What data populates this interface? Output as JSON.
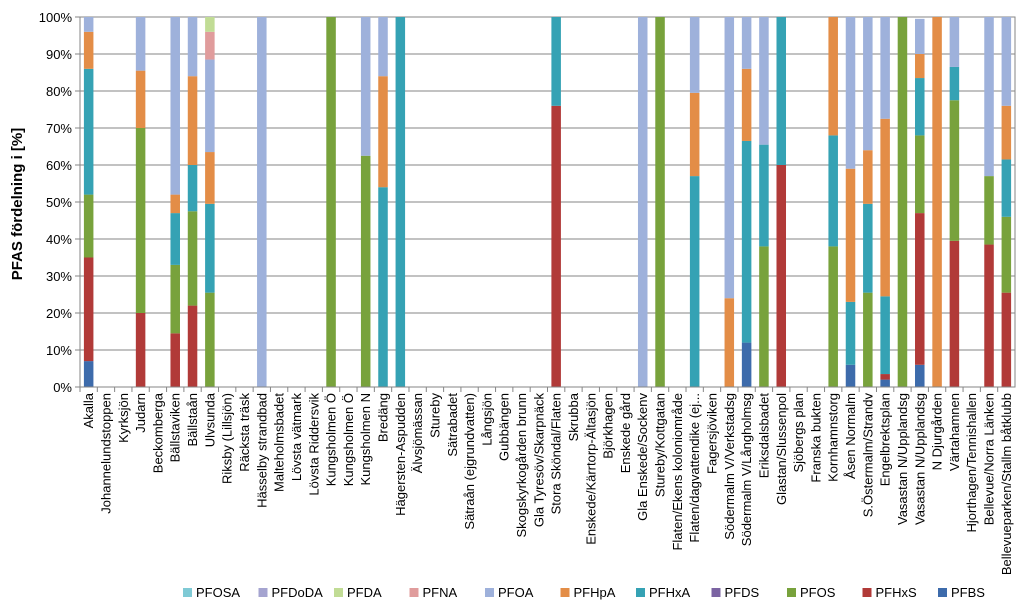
{
  "chart_data": {
    "type": "bar",
    "stacked": true,
    "ylabel": "PFAS fördelning i [%]",
    "ylim": [
      0,
      100
    ],
    "yticks": [
      "0%",
      "10%",
      "20%",
      "30%",
      "40%",
      "50%",
      "60%",
      "70%",
      "80%",
      "90%",
      "100%"
    ],
    "grid": true,
    "legend_position": "bottom",
    "series_order": [
      "PFBS",
      "PFHxS",
      "PFOS",
      "PFDS",
      "PFHxA",
      "PFHpA",
      "PFOA",
      "PFNA",
      "PFDA",
      "PFDoDA",
      "PFOSA"
    ],
    "legend_order": [
      "PFOSA",
      "PFDoDA",
      "PFDA",
      "PFNA",
      "PFOA",
      "PFHpA",
      "PFHxA",
      "PFDS",
      "PFOS",
      "PFHxS",
      "PFBS"
    ],
    "colors": {
      "PFOSA": "#7fcad5",
      "PFDoDA": "#a5a4d0",
      "PFDA": "#c1dc95",
      "PFNA": "#e09c9c",
      "PFOA": "#9eb1db",
      "PFHpA": "#e38d47",
      "PFHxA": "#35a2b4",
      "PFDS": "#7b63a2",
      "PFOS": "#78a23c",
      "PFHxS": "#b13a38",
      "PFBS": "#3d6bab"
    },
    "categories": [
      "Akalla",
      "Johannelundstoppen",
      "Kyrksjön",
      "Judarn",
      "Beckomberga",
      "Bällstaviken",
      "Bällstaån",
      "Ulvsunda",
      "Riksby (Lillsjön)",
      "Räcksta träsk",
      "Hässelby strandbad",
      "Malteholmsbadet",
      "Lövsta vätmark",
      "Lövsta Riddersvik",
      "Kungsholmen Ö",
      "Kungsholmen Ö",
      "Kungsholmen N",
      "Bredäng",
      "Hägersten-Aspudden",
      "Älvsjömässan",
      "Stureby",
      "Sätrabadet",
      "Sätraån (ejgrundvatten)",
      "Långsjön",
      "Gubbängen",
      "Skogskyrkogården brunn",
      "Gla Tyresöv/Skarpnäck",
      "Stora Sköndal/Flaten",
      "Skrubba",
      "Enskede/Kärrtorp-Ältasjön",
      "Björkhagen",
      "Enskede gård",
      "Gla Enskede/Sockenv",
      "Stureby/Kottgatan",
      "Flaten/Ekens koloniområde",
      "Flaten/dagvattendike (ej...",
      "Fagersjöviken",
      "Södermalm V/Verkstadsg",
      "Södermalm V/Långholmsg",
      "Eriksdalsbadet",
      "Glastan/Slussenpol",
      "Sjöbergs plan",
      "Franska bukten",
      "Kornhamnstorg",
      "Åsen Normalm",
      "S.Östermalm/Strandv",
      "Engelbrektsplan",
      "Vasastan N/Upplandsg",
      "Vasastan N/Upplandsg",
      "N Djurgården",
      "Värtahamnen",
      "Hjorthagen/Tennishallen",
      "Bellevue/Norra Länken",
      "Bellevueparken/Stallm båtklubb"
    ],
    "series": [
      {
        "name": "PFBS",
        "values": [
          7,
          0,
          0,
          0,
          0,
          0,
          0,
          0,
          0,
          0,
          0,
          0,
          0,
          0,
          0,
          0,
          0,
          0,
          0,
          0,
          0,
          0,
          0,
          0,
          0,
          0,
          0,
          0,
          0,
          0,
          0,
          0,
          0,
          0,
          0,
          0,
          0,
          0,
          12,
          0,
          0,
          0,
          0,
          0,
          6,
          0,
          2,
          0,
          6,
          0,
          0,
          0,
          0,
          0
        ]
      },
      {
        "name": "PFHxS",
        "values": [
          28,
          0,
          0,
          20,
          0,
          14.5,
          22,
          0,
          0,
          0,
          0,
          0,
          0,
          0,
          0,
          0,
          0,
          0,
          0,
          0,
          0,
          0,
          0,
          0,
          0,
          0,
          0,
          76,
          0,
          0,
          0,
          0,
          0,
          0,
          0,
          0,
          0,
          0,
          0,
          0,
          60,
          0,
          0,
          0,
          0,
          0,
          1.5,
          0,
          41,
          0,
          39.5,
          0,
          38.5,
          25.5
        ]
      },
      {
        "name": "PFOS",
        "values": [
          17,
          0,
          0,
          50,
          0,
          18.5,
          25.5,
          25.5,
          0,
          0,
          0,
          0,
          0,
          0,
          100,
          0,
          62.5,
          0,
          0,
          0,
          0,
          0,
          0,
          0,
          0,
          0,
          0,
          0,
          0,
          0,
          0,
          0,
          0,
          100,
          0,
          0,
          0,
          0,
          0,
          38,
          0,
          0,
          0,
          38,
          0,
          25.5,
          0,
          100,
          21,
          0,
          38,
          0,
          18.5,
          20.5
        ]
      },
      {
        "name": "PFDS",
        "values": [
          0,
          0,
          0,
          0,
          0,
          0,
          0,
          0,
          0,
          0,
          0,
          0,
          0,
          0,
          0,
          0,
          0,
          0,
          0,
          0,
          0,
          0,
          0,
          0,
          0,
          0,
          0,
          0,
          0,
          0,
          0,
          0,
          0,
          0,
          0,
          0,
          0,
          0,
          0,
          0,
          0,
          0,
          0,
          0,
          0,
          0,
          0,
          0,
          0,
          0,
          0,
          0,
          0,
          0
        ]
      },
      {
        "name": "PFHxA",
        "values": [
          34,
          0,
          0,
          0,
          0,
          14,
          12.5,
          24,
          0,
          0,
          0,
          0,
          0,
          0,
          0,
          0,
          0,
          54,
          100,
          0,
          0,
          0,
          0,
          0,
          0,
          0,
          0,
          24,
          0,
          0,
          0,
          0,
          0,
          0,
          0,
          57,
          0,
          0,
          54.5,
          27.5,
          40,
          0,
          0,
          30,
          17,
          24,
          21,
          0,
          15.5,
          0,
          9,
          0,
          0,
          15.5
        ]
      },
      {
        "name": "PFHpA",
        "values": [
          10,
          0,
          0,
          15.5,
          0,
          5,
          24,
          14,
          0,
          0,
          0,
          0,
          0,
          0,
          0,
          0,
          0,
          30,
          0,
          0,
          0,
          0,
          0,
          0,
          0,
          0,
          0,
          0,
          0,
          0,
          0,
          0,
          0,
          0,
          0,
          22.5,
          0,
          24,
          19.5,
          0,
          0,
          0,
          0,
          32,
          36,
          14.5,
          48,
          0,
          6.5,
          100,
          0,
          0,
          0,
          14.5
        ]
      },
      {
        "name": "PFOA",
        "values": [
          4,
          0,
          0,
          14.5,
          0,
          48,
          16,
          25,
          0,
          0,
          100,
          0,
          0,
          0,
          0,
          0,
          37.5,
          16,
          0,
          0,
          0,
          0,
          0,
          0,
          0,
          0,
          0,
          0,
          0,
          0,
          0,
          0,
          100,
          0,
          0,
          20.5,
          0,
          76,
          14,
          34.5,
          0,
          0,
          0,
          0,
          41,
          36,
          27.5,
          0,
          9.5,
          0,
          13.5,
          0,
          43,
          24
        ]
      },
      {
        "name": "PFNA",
        "values": [
          0,
          0,
          0,
          0,
          0,
          0,
          0,
          7.5,
          0,
          0,
          0,
          0,
          0,
          0,
          0,
          0,
          0,
          0,
          0,
          0,
          0,
          0,
          0,
          0,
          0,
          0,
          0,
          0,
          0,
          0,
          0,
          0,
          0,
          0,
          0,
          0,
          0,
          0,
          0,
          0,
          0,
          0,
          0,
          0,
          0,
          0,
          0,
          0,
          0,
          0,
          0,
          0,
          0,
          0
        ]
      },
      {
        "name": "PFDA",
        "values": [
          0,
          0,
          0,
          0,
          0,
          0,
          0,
          4,
          0,
          0,
          0,
          0,
          0,
          0,
          0,
          0,
          0,
          0,
          0,
          0,
          0,
          0,
          0,
          0,
          0,
          0,
          0,
          0,
          0,
          0,
          0,
          0,
          0,
          0,
          0,
          0,
          0,
          0,
          0,
          0,
          0,
          0,
          0,
          0,
          0,
          0,
          0,
          0,
          0,
          0,
          0,
          0,
          0,
          0
        ]
      },
      {
        "name": "PFDoDA",
        "values": [
          0,
          0,
          0,
          0,
          0,
          0,
          0,
          0,
          0,
          0,
          0,
          0,
          0,
          0,
          0,
          0,
          0,
          0,
          0,
          0,
          0,
          0,
          0,
          0,
          0,
          0,
          0,
          0,
          0,
          0,
          0,
          0,
          0,
          0,
          0,
          0,
          0,
          0,
          0,
          0,
          0,
          0,
          0,
          0,
          0,
          0,
          0,
          0,
          0,
          0,
          0,
          0,
          0,
          0
        ]
      },
      {
        "name": "PFOSA",
        "values": [
          0,
          0,
          0,
          0,
          0,
          0,
          0,
          0,
          0,
          0,
          0,
          0,
          0,
          0,
          0,
          0,
          0,
          0,
          0,
          0,
          0,
          0,
          0,
          0,
          0,
          0,
          0,
          0,
          0,
          0,
          0,
          0,
          0,
          0,
          0,
          0,
          0,
          0,
          0,
          0,
          0,
          0,
          0,
          0,
          0,
          0,
          0,
          0,
          0,
          0,
          0,
          0,
          0,
          0
        ]
      }
    ]
  }
}
